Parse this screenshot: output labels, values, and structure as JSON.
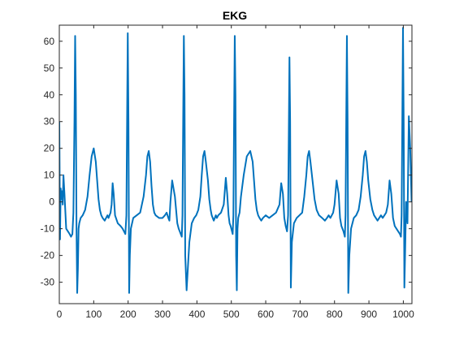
{
  "chart_data": {
    "type": "line",
    "title": "EKG",
    "xlabel": "",
    "ylabel": "",
    "xlim": [
      0,
      1025
    ],
    "ylim": [
      -38,
      66
    ],
    "xticks": [
      0,
      100,
      200,
      300,
      400,
      500,
      600,
      700,
      800,
      900,
      1000
    ],
    "yticks": [
      -30,
      -20,
      -10,
      0,
      10,
      20,
      30,
      40,
      50,
      60
    ],
    "grid": false,
    "legend": "none",
    "series": [
      {
        "name": "",
        "color": "#0072BD",
        "x": [
          0,
          2,
          4,
          6,
          8,
          10,
          12,
          15,
          20,
          25,
          30,
          34,
          38,
          41,
          44,
          46,
          48,
          50,
          52,
          54,
          56,
          58,
          62,
          68,
          75,
          82,
          88,
          94,
          100,
          106,
          110,
          114,
          118,
          122,
          126,
          132,
          136,
          140,
          143,
          146,
          149,
          152,
          155,
          158,
          162,
          170,
          178,
          184,
          188,
          192,
          195,
          197,
          199,
          201,
          203,
          205,
          208,
          215,
          225,
          235,
          245,
          252,
          256,
          260,
          264,
          268,
          272,
          276,
          280,
          290,
          300,
          307,
          312,
          317,
          320,
          323,
          328,
          336,
          343,
          347,
          350,
          353,
          356,
          358,
          360,
          362,
          364,
          366,
          370,
          378,
          385,
          392,
          398,
          404,
          410,
          414,
          418,
          422,
          426,
          432,
          436,
          440,
          443,
          446,
          449,
          452,
          455,
          458,
          462,
          470,
          478,
          484,
          488,
          492,
          495,
          498,
          500,
          502,
          504,
          506,
          508,
          510,
          512,
          514,
          516,
          518,
          520,
          522,
          524,
          528,
          536,
          545,
          555,
          562,
          566,
          570,
          574,
          578,
          582,
          587,
          592,
          600,
          610,
          620,
          630,
          640,
          645,
          650,
          654,
          658,
          662,
          665,
          667,
          669,
          671,
          673,
          676,
          682,
          690,
          698,
          706,
          712,
          718,
          722,
          726,
          730,
          736,
          742,
          748,
          755,
          764,
          772,
          778,
          783,
          788,
          792,
          796,
          800,
          806,
          812,
          816,
          820,
          823,
          826,
          828,
          830,
          832,
          834,
          836,
          838,
          840,
          843,
          848,
          856,
          863,
          870,
          876,
          882,
          886,
          890,
          894,
          898,
          904,
          910,
          915,
          920,
          925,
          930,
          935,
          940,
          945,
          950,
          955,
          960,
          965,
          970,
          975,
          980,
          985,
          990,
          993,
          995,
          997,
          999,
          1001,
          1003,
          1005,
          1008,
          1012,
          1016,
          1020,
          1022,
          1024
        ],
        "y": [
          30,
          -14,
          5,
          1,
          4,
          -1,
          10,
          3,
          -10,
          -11,
          -12,
          -13,
          -12,
          -4,
          30,
          62,
          40,
          -10,
          -34,
          -25,
          -10,
          -8,
          -6,
          -5,
          -3,
          2,
          10,
          17,
          20,
          15,
          8,
          1,
          -3,
          -5,
          -6,
          -7,
          -6,
          -5,
          -6,
          -5,
          -4,
          -1,
          7,
          3,
          -5,
          -8,
          -9,
          -10,
          -11,
          -12,
          -5,
          30,
          63,
          30,
          -34,
          -20,
          -10,
          -6,
          -5,
          -4,
          2,
          10,
          17,
          19,
          15,
          6,
          -1,
          -4,
          -5,
          -6,
          -6,
          -5,
          -4,
          -6,
          -7,
          0,
          8,
          2,
          -8,
          -10,
          -11,
          -12,
          -13,
          -5,
          30,
          62,
          40,
          -20,
          -33,
          -15,
          -8,
          -6,
          -5,
          -3,
          2,
          10,
          17,
          19,
          15,
          8,
          1,
          -3,
          -5,
          -6,
          -7,
          -6,
          -5,
          -6,
          -5,
          -4,
          -1,
          9,
          3,
          -5,
          -8,
          -9,
          -10,
          -11,
          -12,
          -5,
          30,
          62,
          40,
          -20,
          -33,
          -10,
          -6,
          -5,
          -4,
          2,
          10,
          17,
          19,
          15,
          8,
          1,
          -3,
          -5,
          -6,
          -7,
          -6,
          -5,
          -6,
          -5,
          -4,
          -1,
          7,
          3,
          -6,
          -9,
          -11,
          -5,
          25,
          54,
          30,
          -32,
          -15,
          -8,
          -6,
          -5,
          -4,
          2,
          10,
          17,
          19,
          15,
          8,
          1,
          -3,
          -5,
          -6,
          -7,
          -6,
          -5,
          -6,
          -5,
          -4,
          -1,
          8,
          3,
          -6,
          -9,
          -10,
          -11,
          -12,
          -13,
          -5,
          30,
          62,
          30,
          -34,
          -20,
          -10,
          -6,
          -5,
          -3,
          2,
          10,
          17,
          19,
          15,
          8,
          1,
          -3,
          -5,
          -6,
          -7,
          -6,
          -5,
          -6,
          -5,
          -4,
          -1,
          8,
          3,
          -6,
          -9,
          -10,
          -11,
          -12,
          -13,
          -5,
          30,
          65,
          30,
          -32,
          -20,
          0,
          -8,
          32,
          20,
          10,
          0
        ]
      }
    ]
  }
}
